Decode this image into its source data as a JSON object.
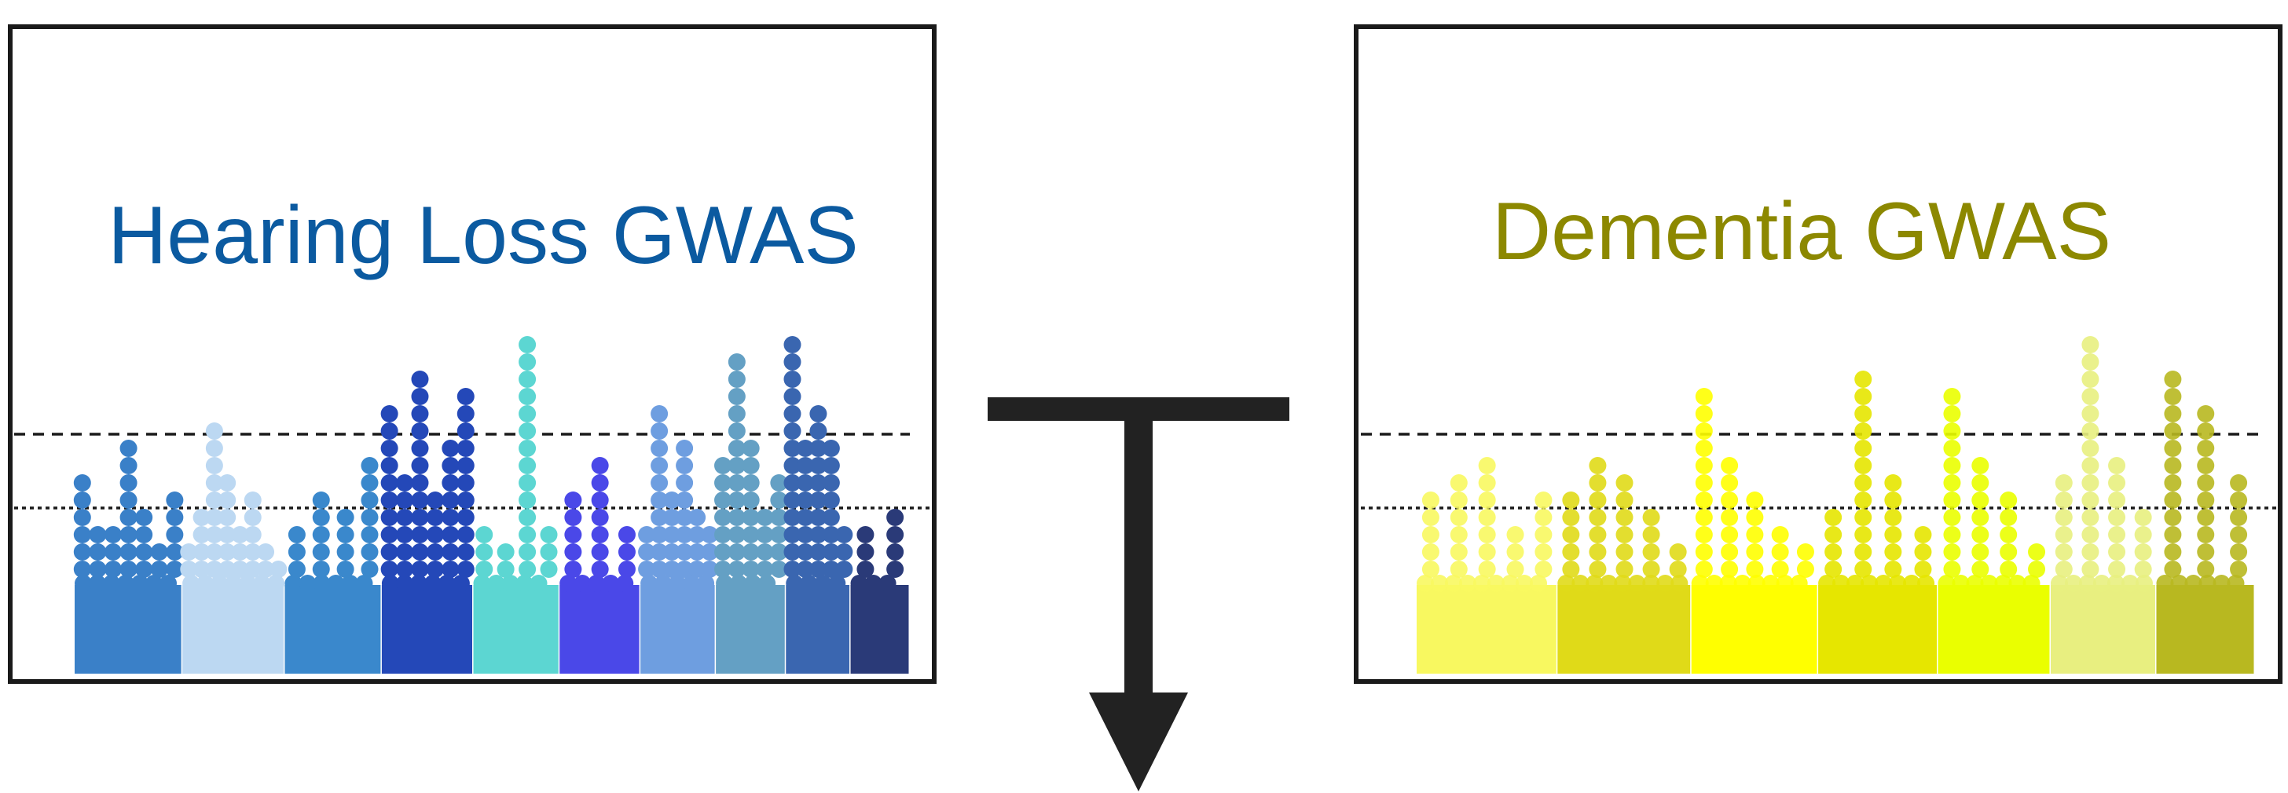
{
  "panels": [
    {
      "title": "Hearing Loss GWAS",
      "title_color": "#0b5aa0",
      "point_alpha": 1.0,
      "colors": [
        "#3a80c8",
        "#bcd8f2",
        "#3a88cc",
        "#2448b8",
        "#5cd6d2",
        "#4a48e8",
        "#6e9ee0",
        "#64a0c4",
        "#3a66b0",
        "#2a3a78"
      ],
      "heights": [
        [
          0.45,
          0.2,
          0.25,
          0.55,
          0.3,
          0.15,
          0.4
        ],
        [
          0.15,
          0.3,
          0.65,
          0.45,
          0.2,
          0.35,
          0.15,
          0.1
        ],
        [
          0.25,
          0.4,
          0.3,
          0.5
        ],
        [
          0.7,
          0.45,
          0.85,
          0.35,
          0.6,
          0.75
        ],
        [
          0.25,
          0.15,
          1.0,
          0.2
        ],
        [
          0.35,
          0.5,
          0.25
        ],
        [
          0.25,
          0.7,
          0.4,
          0.55,
          0.3,
          0.2
        ],
        [
          0.5,
          0.9,
          0.55,
          0.3,
          0.45
        ],
        [
          1.0,
          0.55,
          0.7,
          0.55,
          0.25
        ],
        [
          0.25,
          0.3
        ]
      ]
    },
    {
      "title": "Dementia GWAS",
      "title_color": "#8c8800",
      "point_alpha": 0.9,
      "colors": [
        "#f8f860",
        "#e0da18",
        "#ffff00",
        "#e6e600",
        "#eaff00",
        "#e8ef80",
        "#b8b820"
      ],
      "heights": [
        [
          0.35,
          0.45,
          0.55,
          0.25,
          0.4
        ],
        [
          0.35,
          0.55,
          0.45,
          0.3,
          0.15
        ],
        [
          0.8,
          0.55,
          0.4,
          0.25,
          0.15
        ],
        [
          0.3,
          0.85,
          0.45,
          0.25
        ],
        [
          0.8,
          0.5,
          0.35,
          0.2
        ],
        [
          0.45,
          1.0,
          0.55,
          0.3
        ],
        [
          0.9,
          0.75,
          0.45
        ]
      ]
    }
  ]
}
